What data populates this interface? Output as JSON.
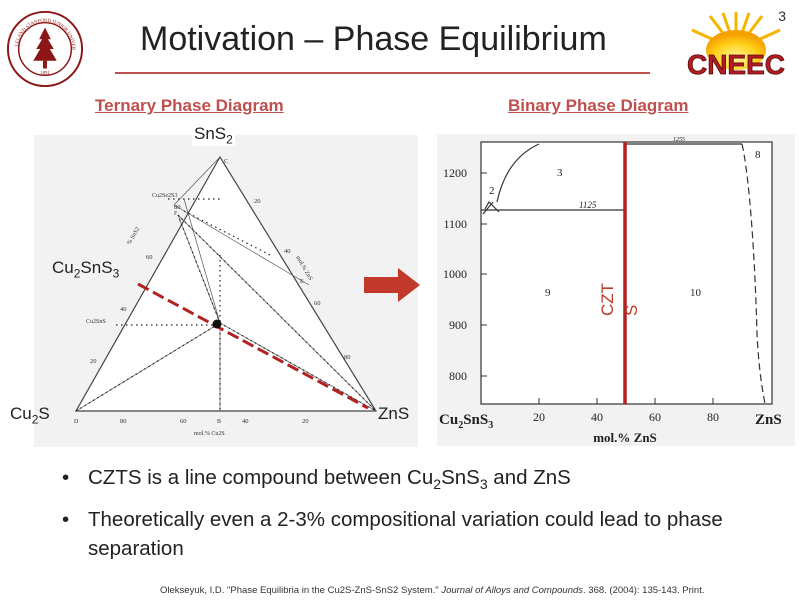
{
  "slide": {
    "number": "3",
    "title": "Motivation – Phase Equilibrium",
    "logo_right_text": "CNEEC"
  },
  "seal": {
    "text_top": "LELAND STANFORD JUNIOR UNIVERSITY",
    "year": "1891"
  },
  "sections": {
    "ternary_heading": "Ternary Phase Diagram",
    "binary_heading": "Binary Phase Diagram"
  },
  "ternary": {
    "top_vertex": {
      "main": "SnS",
      "sub": "2"
    },
    "left_vertex": {
      "main": "Cu",
      "sub": "2",
      "tail": "S"
    },
    "right_vertex": "ZnS",
    "side_compound": {
      "a": "Cu",
      "a_sub": "2",
      "b": "SnS",
      "b_sub": "3"
    },
    "inner_labels": {
      "c": "C",
      "cu2snse3": "Cu2Se2S3",
      "f": "F",
      "cu2sns": "Cu2SnS",
      "e": "E",
      "d": "D",
      "b": "B",
      "left_axis": "% SnS2",
      "right_axis": "mol.% ZnS",
      "bottom_axis": "mol.% Cu2S"
    },
    "bottom_ticks": [
      "80",
      "60",
      "40",
      "20"
    ],
    "left_ticks": [
      "20",
      "40",
      "60",
      "80"
    ],
    "right_ticks": [
      "20",
      "40",
      "60",
      "80"
    ]
  },
  "binary": {
    "y_ticks": [
      "1200",
      "1100",
      "1000",
      "900",
      "800"
    ],
    "x_ticks": [
      "20",
      "40",
      "60",
      "80"
    ],
    "x_left": {
      "a": "Cu",
      "a_sub": "2",
      "b": "SnS",
      "b_sub": "3"
    },
    "x_right": "ZnS",
    "x_axis_title": "mol.% ZnS",
    "regions": [
      "2",
      "3",
      "8",
      "9",
      "10"
    ],
    "eutectic_label": "1125",
    "top_label": "1255",
    "czts_label_top": "CZT",
    "czts_label_bottom": "S"
  },
  "bullets": {
    "b1_pre": "CZTS is a line compound between Cu",
    "b1_s1": "2",
    "b1_mid": "SnS",
    "b1_s2": "3",
    "b1_post": " and ZnS",
    "b2": "Theoretically even a 2-3% compositional variation could lead to phase separation"
  },
  "citation": {
    "pre": "Olekseyuk, I.D. \"Phase Equilibria in the Cu2S-ZnS-SnS2 System.\" ",
    "journal": "Journal of Alloys and Compounds",
    "post": ". 368. (2004): 135-143. Print."
  },
  "colors": {
    "accent": "#c0504d",
    "czts_line": "#b22222",
    "arrow": "#c0392b",
    "seal": "#8c1515",
    "logo_text": "#b01e23"
  }
}
